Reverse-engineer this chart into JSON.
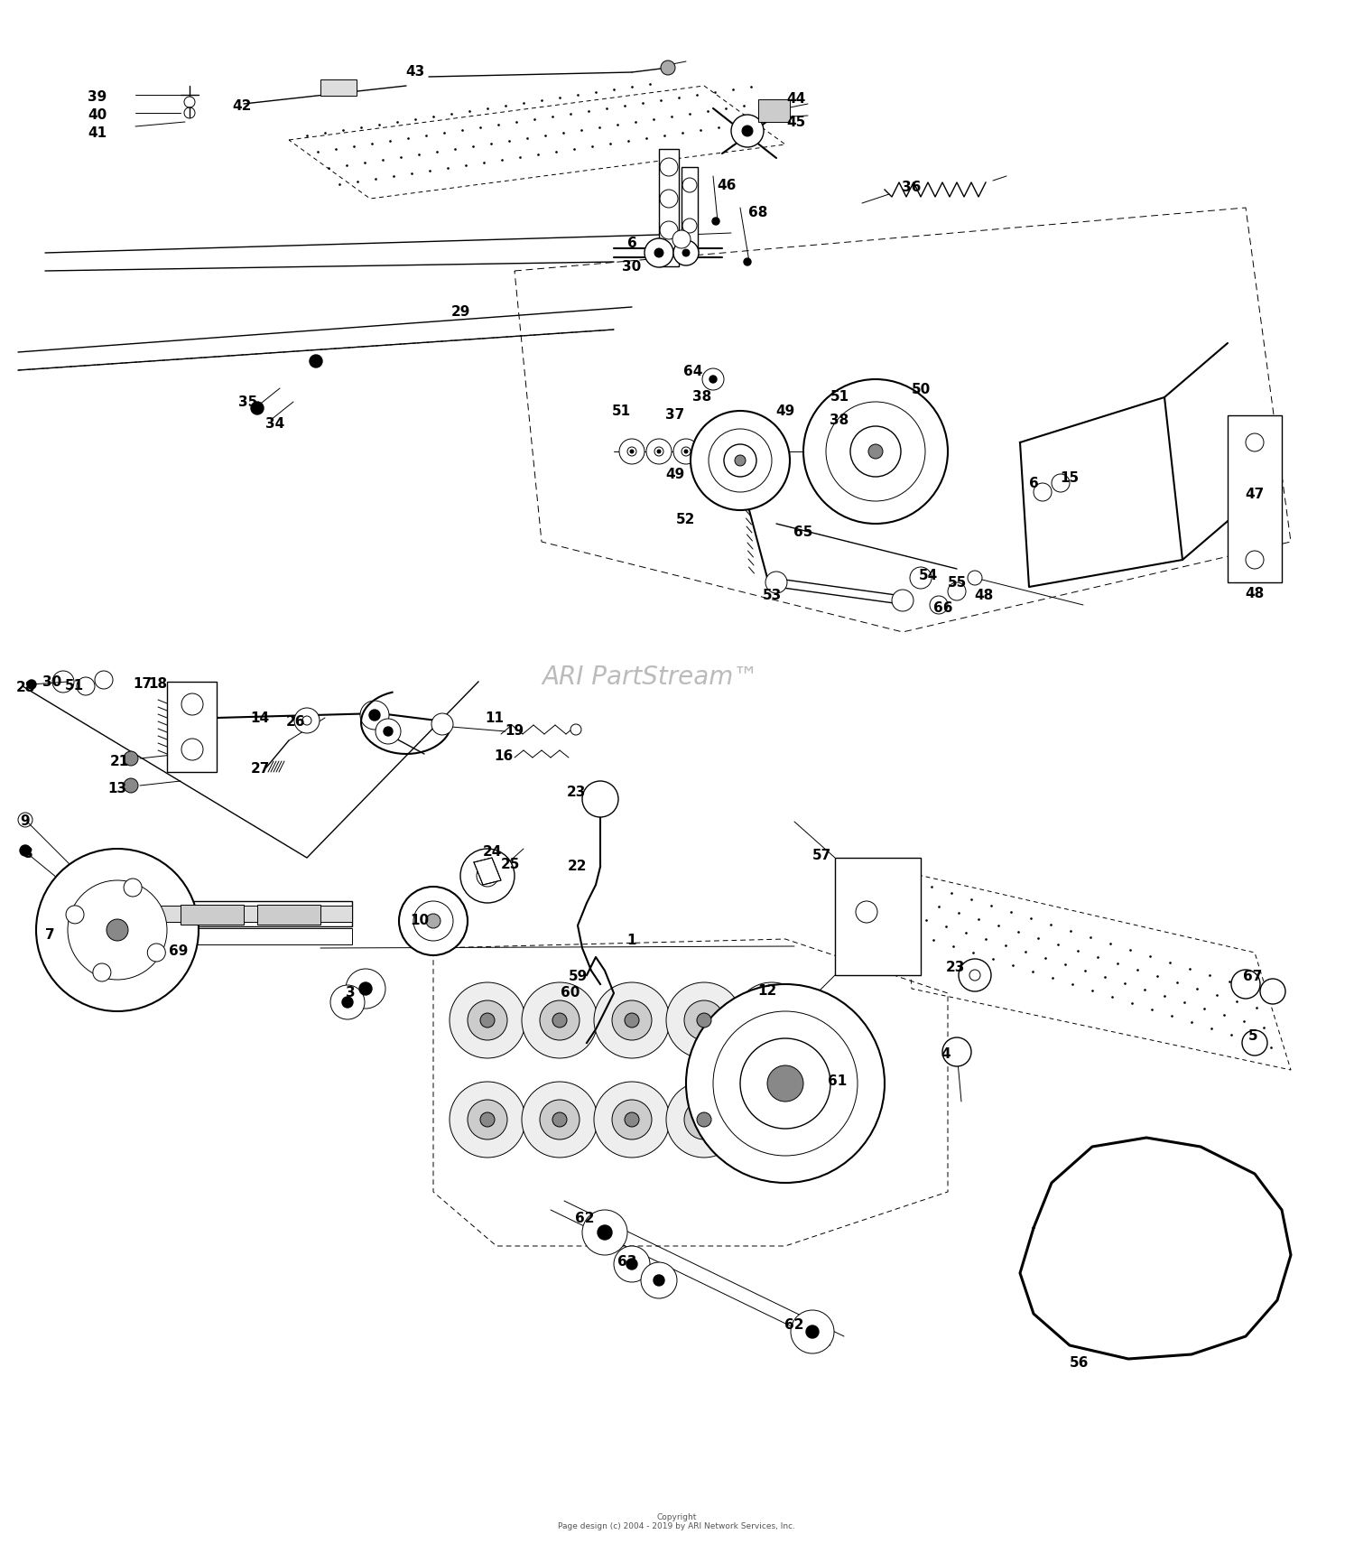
{
  "bg_color": "#ffffff",
  "line_color": "#000000",
  "watermark_text": "ARI PartStream™",
  "watermark_color": "#bbbbbb",
  "copyright": "Copyright\nPage design (c) 2004 - 2019 by ARI Network Services, Inc.",
  "fig_width": 15.0,
  "fig_height": 17.2,
  "dpi": 100,
  "xlim": [
    0,
    1500
  ],
  "ylim": [
    1720,
    0
  ]
}
